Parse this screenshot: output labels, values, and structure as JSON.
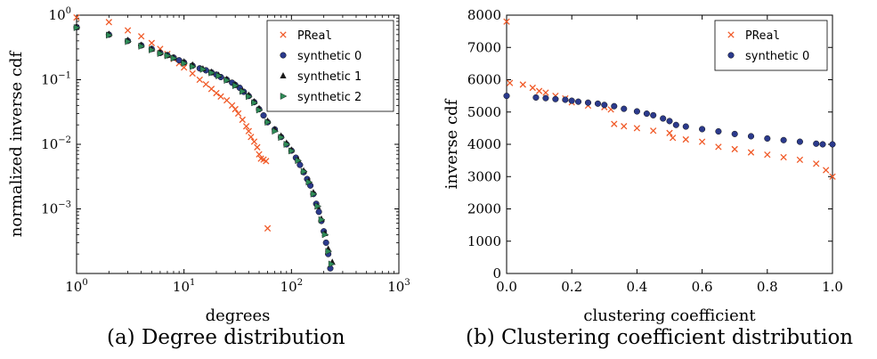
{
  "captions": {
    "a": "(a) Degree distribution",
    "b": "(b) Clustering coefficient distribution"
  },
  "colors": {
    "preal": "#f05a28",
    "synthetic0": "#2b3a8c",
    "synthetic1": "#1a1a1a",
    "synthetic2": "#2e8b57"
  },
  "chart_data": [
    {
      "type": "scatter",
      "xlabel": "degrees",
      "ylabel": "normalized inverse cdf",
      "xscale": "log",
      "yscale": "log",
      "xlim": [
        1,
        1000
      ],
      "ylim": [
        0.0001,
        1
      ],
      "x_ticks": [
        {
          "v": 1,
          "base": "10",
          "exp": "0"
        },
        {
          "v": 10,
          "base": "10",
          "exp": "1"
        },
        {
          "v": 100,
          "base": "10",
          "exp": "2"
        },
        {
          "v": 1000,
          "base": "10",
          "exp": "3"
        }
      ],
      "y_ticks": [
        {
          "v": 0.001,
          "base": "10",
          "exp": "−3"
        },
        {
          "v": 0.01,
          "base": "10",
          "exp": "−2"
        },
        {
          "v": 0.1,
          "base": "10",
          "exp": "−1"
        },
        {
          "v": 1,
          "base": "10",
          "exp": "0"
        }
      ],
      "legend_position": "top-right",
      "series": [
        {
          "name": "PReal",
          "marker": "x",
          "color_key": "preal",
          "points": [
            [
              1,
              0.92
            ],
            [
              2,
              0.78
            ],
            [
              3,
              0.58
            ],
            [
              4,
              0.47
            ],
            [
              5,
              0.37
            ],
            [
              6,
              0.3
            ],
            [
              7,
              0.25
            ],
            [
              8,
              0.21
            ],
            [
              9,
              0.18
            ],
            [
              10,
              0.155
            ],
            [
              12,
              0.125
            ],
            [
              14,
              0.1
            ],
            [
              16,
              0.085
            ],
            [
              18,
              0.072
            ],
            [
              20,
              0.062
            ],
            [
              22,
              0.055
            ],
            [
              25,
              0.048
            ],
            [
              28,
              0.04
            ],
            [
              30,
              0.035
            ],
            [
              32,
              0.03
            ],
            [
              35,
              0.024
            ],
            [
              38,
              0.019
            ],
            [
              40,
              0.016
            ],
            [
              42,
              0.013
            ],
            [
              45,
              0.011
            ],
            [
              48,
              0.009
            ],
            [
              50,
              0.007
            ],
            [
              52,
              0.006
            ],
            [
              55,
              0.0058
            ],
            [
              58,
              0.0055
            ],
            [
              60,
              0.0005
            ]
          ]
        },
        {
          "name": "synthetic 0",
          "marker": "circle",
          "color_key": "synthetic0",
          "points": [
            [
              1,
              0.65
            ],
            [
              2,
              0.5
            ],
            [
              3,
              0.4
            ],
            [
              4,
              0.34
            ],
            [
              5,
              0.3
            ],
            [
              6,
              0.26
            ],
            [
              7,
              0.24
            ],
            [
              8,
              0.22
            ],
            [
              9,
              0.2
            ],
            [
              10,
              0.185
            ],
            [
              12,
              0.165
            ],
            [
              14,
              0.15
            ],
            [
              16,
              0.14
            ],
            [
              18,
              0.13
            ],
            [
              20,
              0.12
            ],
            [
              22,
              0.11
            ],
            [
              25,
              0.1
            ],
            [
              28,
              0.09
            ],
            [
              30,
              0.083
            ],
            [
              33,
              0.075
            ],
            [
              36,
              0.065
            ],
            [
              40,
              0.056
            ],
            [
              45,
              0.045
            ],
            [
              50,
              0.035
            ],
            [
              55,
              0.028
            ],
            [
              60,
              0.022
            ],
            [
              70,
              0.017
            ],
            [
              80,
              0.013
            ],
            [
              90,
              0.01
            ],
            [
              100,
              0.008
            ],
            [
              110,
              0.0062
            ],
            [
              120,
              0.0048
            ],
            [
              130,
              0.0037
            ],
            [
              140,
              0.0029
            ],
            [
              150,
              0.0023
            ],
            [
              160,
              0.0017
            ],
            [
              170,
              0.0012
            ],
            [
              180,
              0.0009
            ],
            [
              190,
              0.00065
            ],
            [
              200,
              0.00045
            ],
            [
              210,
              0.0003
            ],
            [
              220,
              0.0002
            ],
            [
              230,
              0.00012
            ]
          ]
        },
        {
          "name": "synthetic 1",
          "marker": "triangle-up",
          "color_key": "synthetic1",
          "points": [
            [
              1,
              0.66
            ],
            [
              2,
              0.51
            ],
            [
              3,
              0.41
            ],
            [
              4,
              0.345
            ],
            [
              5,
              0.3
            ],
            [
              6,
              0.265
            ],
            [
              7,
              0.24
            ],
            [
              8,
              0.22
            ],
            [
              10,
              0.19
            ],
            [
              12,
              0.17
            ],
            [
              15,
              0.148
            ],
            [
              18,
              0.132
            ],
            [
              21,
              0.118
            ],
            [
              25,
              0.102
            ],
            [
              30,
              0.084
            ],
            [
              35,
              0.068
            ],
            [
              40,
              0.058
            ],
            [
              45,
              0.046
            ],
            [
              50,
              0.036
            ],
            [
              60,
              0.023
            ],
            [
              70,
              0.017
            ],
            [
              80,
              0.0135
            ],
            [
              90,
              0.0105
            ],
            [
              100,
              0.0082
            ],
            [
              115,
              0.0058
            ],
            [
              130,
              0.0039
            ],
            [
              145,
              0.0027
            ],
            [
              160,
              0.0018
            ],
            [
              175,
              0.0011
            ],
            [
              190,
              0.0007
            ],
            [
              205,
              0.00042
            ],
            [
              220,
              0.00024
            ],
            [
              240,
              0.00015
            ]
          ]
        },
        {
          "name": "synthetic 2",
          "marker": "triangle-right",
          "color_key": "synthetic2",
          "points": [
            [
              1,
              0.64
            ],
            [
              2,
              0.49
            ],
            [
              3,
              0.39
            ],
            [
              4,
              0.33
            ],
            [
              5,
              0.29
            ],
            [
              6,
              0.255
            ],
            [
              7,
              0.235
            ],
            [
              8,
              0.215
            ],
            [
              10,
              0.18
            ],
            [
              12,
              0.16
            ],
            [
              15,
              0.145
            ],
            [
              18,
              0.128
            ],
            [
              21,
              0.115
            ],
            [
              25,
              0.098
            ],
            [
              30,
              0.081
            ],
            [
              35,
              0.066
            ],
            [
              40,
              0.055
            ],
            [
              45,
              0.044
            ],
            [
              50,
              0.034
            ],
            [
              60,
              0.022
            ],
            [
              70,
              0.016
            ],
            [
              80,
              0.0128
            ],
            [
              90,
              0.01
            ],
            [
              100,
              0.0079
            ],
            [
              115,
              0.0056
            ],
            [
              130,
              0.0038
            ],
            [
              145,
              0.0026
            ],
            [
              160,
              0.0017
            ],
            [
              175,
              0.0011
            ],
            [
              190,
              0.00068
            ],
            [
              205,
              0.0004
            ],
            [
              220,
              0.00022
            ],
            [
              235,
              0.00014
            ]
          ]
        }
      ]
    },
    {
      "type": "scatter",
      "xlabel": "clustering coefficient",
      "ylabel": "inverse cdf",
      "xlim": [
        0,
        1
      ],
      "ylim": [
        0,
        8000
      ],
      "x_ticks": [
        {
          "v": 0,
          "label": "0.0"
        },
        {
          "v": 0.2,
          "label": "0.2"
        },
        {
          "v": 0.4,
          "label": "0.4"
        },
        {
          "v": 0.6,
          "label": "0.6"
        },
        {
          "v": 0.8,
          "label": "0.8"
        },
        {
          "v": 1,
          "label": "1.0"
        }
      ],
      "y_ticks": [
        {
          "v": 0,
          "label": "0"
        },
        {
          "v": 1000,
          "label": "1000"
        },
        {
          "v": 2000,
          "label": "2000"
        },
        {
          "v": 3000,
          "label": "3000"
        },
        {
          "v": 4000,
          "label": "4000"
        },
        {
          "v": 5000,
          "label": "5000"
        },
        {
          "v": 6000,
          "label": "6000"
        },
        {
          "v": 7000,
          "label": "7000"
        },
        {
          "v": 8000,
          "label": "8000"
        }
      ],
      "legend_position": "top-right",
      "series": [
        {
          "name": "PReal",
          "marker": "x",
          "color_key": "preal",
          "points": [
            [
              0,
              7800
            ],
            [
              0.01,
              5900
            ],
            [
              0.05,
              5850
            ],
            [
              0.08,
              5750
            ],
            [
              0.1,
              5650
            ],
            [
              0.12,
              5600
            ],
            [
              0.15,
              5500
            ],
            [
              0.18,
              5420
            ],
            [
              0.2,
              5300
            ],
            [
              0.25,
              5200
            ],
            [
              0.3,
              5150
            ],
            [
              0.32,
              5080
            ],
            [
              0.33,
              4630
            ],
            [
              0.36,
              4560
            ],
            [
              0.4,
              4500
            ],
            [
              0.45,
              4420
            ],
            [
              0.5,
              4350
            ],
            [
              0.51,
              4200
            ],
            [
              0.55,
              4150
            ],
            [
              0.6,
              4080
            ],
            [
              0.65,
              3920
            ],
            [
              0.7,
              3850
            ],
            [
              0.75,
              3750
            ],
            [
              0.8,
              3680
            ],
            [
              0.85,
              3600
            ],
            [
              0.9,
              3520
            ],
            [
              0.95,
              3400
            ],
            [
              0.98,
              3200
            ],
            [
              1.0,
              3000
            ]
          ]
        },
        {
          "name": "synthetic 0",
          "marker": "circle",
          "color_key": "synthetic0",
          "points": [
            [
              0,
              5500
            ],
            [
              0.09,
              5450
            ],
            [
              0.12,
              5430
            ],
            [
              0.15,
              5400
            ],
            [
              0.18,
              5380
            ],
            [
              0.2,
              5350
            ],
            [
              0.22,
              5320
            ],
            [
              0.25,
              5290
            ],
            [
              0.28,
              5260
            ],
            [
              0.3,
              5220
            ],
            [
              0.33,
              5180
            ],
            [
              0.36,
              5100
            ],
            [
              0.4,
              5020
            ],
            [
              0.43,
              4950
            ],
            [
              0.45,
              4900
            ],
            [
              0.48,
              4800
            ],
            [
              0.5,
              4720
            ],
            [
              0.52,
              4600
            ],
            [
              0.55,
              4550
            ],
            [
              0.6,
              4470
            ],
            [
              0.65,
              4400
            ],
            [
              0.7,
              4320
            ],
            [
              0.75,
              4250
            ],
            [
              0.8,
              4180
            ],
            [
              0.85,
              4130
            ],
            [
              0.9,
              4080
            ],
            [
              0.95,
              4020
            ],
            [
              0.97,
              4000
            ],
            [
              1.0,
              4000
            ]
          ]
        }
      ]
    }
  ]
}
